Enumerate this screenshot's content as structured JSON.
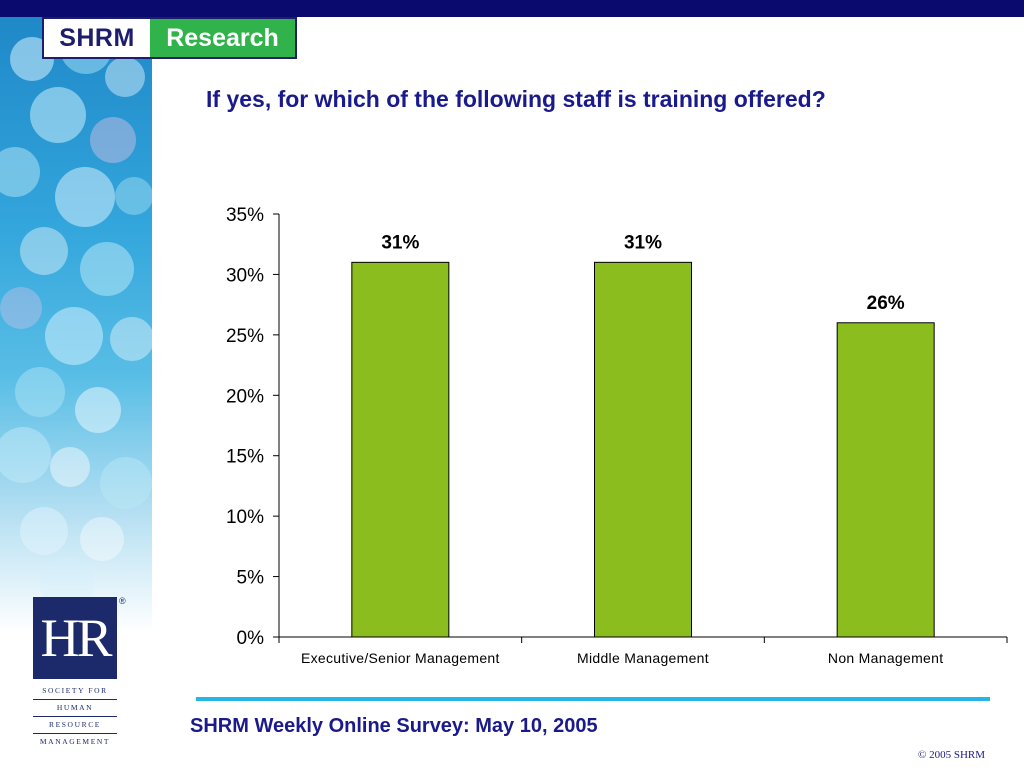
{
  "header": {
    "logo_left": "SHRM",
    "logo_right": "Research"
  },
  "colors": {
    "bar": "#8cbd1f",
    "title": "#1a1a8c",
    "top_bar": "#0a0a6e"
  },
  "chart_data": {
    "type": "bar",
    "title": "If yes, for which of the following staff is training offered?",
    "xlabel": "",
    "ylabel": "",
    "categories": [
      "Executive/Senior Management",
      "Middle Management",
      "Non Management"
    ],
    "values": [
      31,
      31,
      26
    ],
    "data_labels": [
      "31%",
      "31%",
      "26%"
    ],
    "ylim": [
      0,
      35
    ],
    "y_ticks": [
      0,
      5,
      10,
      15,
      20,
      25,
      30,
      35
    ],
    "y_tick_labels": [
      "0%",
      "5%",
      "10%",
      "15%",
      "20%",
      "25%",
      "30%",
      "35%"
    ],
    "grid": false,
    "legend": "none"
  },
  "logo_hr": {
    "letters": "HR",
    "registered": "®",
    "lines": [
      "SOCIETY FOR",
      "HUMAN",
      "RESOURCE",
      "MANAGEMENT"
    ]
  },
  "footer": {
    "survey": "SHRM Weekly Online Survey: May 10, 2005",
    "copyright": "© 2005 SHRM"
  }
}
